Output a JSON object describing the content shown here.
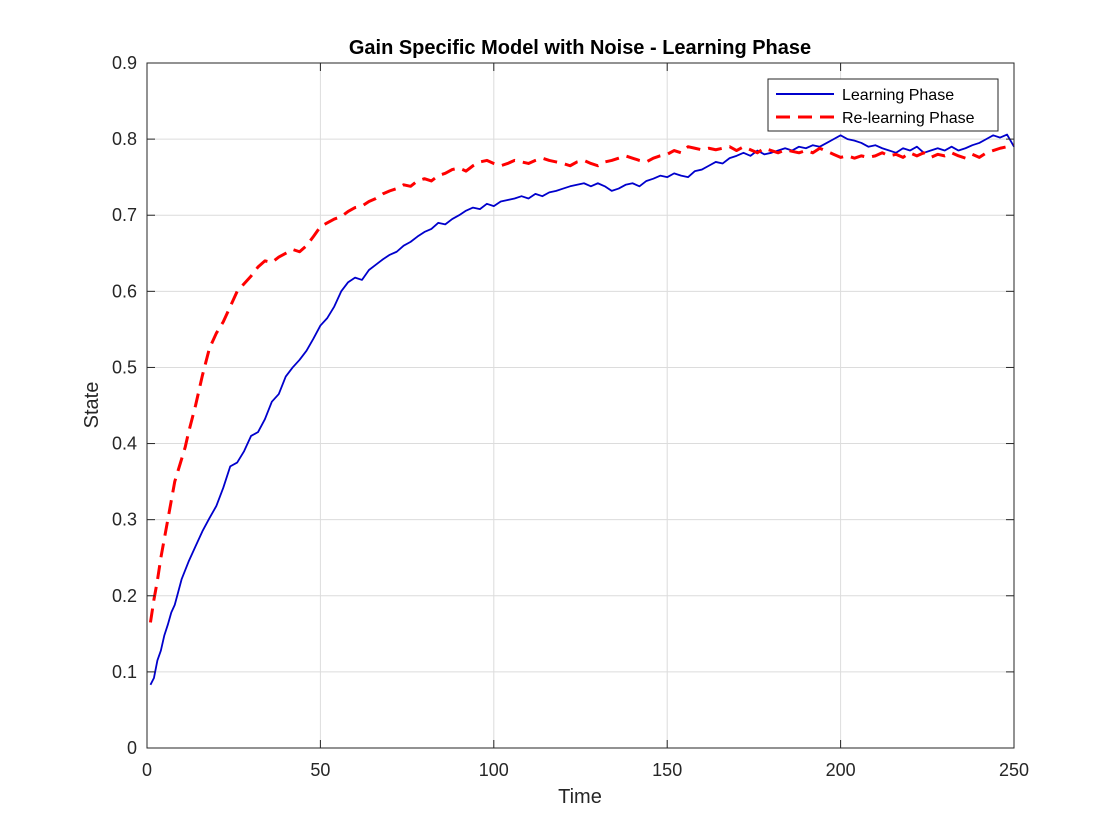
{
  "chart_data": {
    "type": "line",
    "title": "Gain Specific Model with Noise - Learning Phase",
    "xlabel": "Time",
    "ylabel": "State",
    "xlim": [
      0,
      250
    ],
    "ylim": [
      0,
      0.9
    ],
    "xticks": [
      "0",
      "50",
      "100",
      "150",
      "200",
      "250"
    ],
    "yticks": [
      "0",
      "0.1",
      "0.2",
      "0.3",
      "0.4",
      "0.5",
      "0.6",
      "0.7",
      "0.8",
      "0.9"
    ],
    "grid": true,
    "legend": "top-right",
    "series": [
      {
        "name": "Learning Phase",
        "color": "#0000cc",
        "style": "solid",
        "x": [
          1,
          2,
          3,
          4,
          5,
          6,
          7,
          8,
          9,
          10,
          12,
          14,
          16,
          18,
          20,
          22,
          24,
          26,
          28,
          30,
          32,
          34,
          36,
          38,
          40,
          42,
          44,
          46,
          48,
          50,
          52,
          54,
          56,
          58,
          60,
          62,
          64,
          66,
          68,
          70,
          72,
          74,
          76,
          78,
          80,
          82,
          84,
          86,
          88,
          90,
          92,
          94,
          96,
          98,
          100,
          102,
          104,
          106,
          108,
          110,
          112,
          114,
          116,
          118,
          120,
          122,
          124,
          126,
          128,
          130,
          132,
          134,
          136,
          138,
          140,
          142,
          144,
          146,
          148,
          150,
          152,
          154,
          156,
          158,
          160,
          162,
          164,
          166,
          168,
          170,
          172,
          174,
          176,
          178,
          180,
          182,
          184,
          186,
          188,
          190,
          192,
          194,
          196,
          198,
          200,
          202,
          204,
          206,
          208,
          210,
          212,
          214,
          216,
          218,
          220,
          222,
          224,
          226,
          228,
          230,
          232,
          234,
          236,
          238,
          240,
          242,
          244,
          246,
          248,
          250
        ],
        "values": [
          0.083,
          0.092,
          0.115,
          0.128,
          0.148,
          0.162,
          0.178,
          0.188,
          0.205,
          0.222,
          0.245,
          0.265,
          0.285,
          0.302,
          0.318,
          0.342,
          0.37,
          0.375,
          0.39,
          0.41,
          0.415,
          0.432,
          0.455,
          0.465,
          0.488,
          0.5,
          0.51,
          0.522,
          0.538,
          0.555,
          0.565,
          0.58,
          0.6,
          0.612,
          0.618,
          0.615,
          0.628,
          0.635,
          0.642,
          0.648,
          0.652,
          0.66,
          0.665,
          0.672,
          0.678,
          0.682,
          0.69,
          0.688,
          0.695,
          0.7,
          0.706,
          0.71,
          0.708,
          0.715,
          0.712,
          0.718,
          0.72,
          0.722,
          0.725,
          0.722,
          0.728,
          0.725,
          0.73,
          0.732,
          0.735,
          0.738,
          0.74,
          0.742,
          0.738,
          0.742,
          0.738,
          0.732,
          0.735,
          0.74,
          0.742,
          0.738,
          0.745,
          0.748,
          0.752,
          0.75,
          0.755,
          0.752,
          0.75,
          0.758,
          0.76,
          0.765,
          0.77,
          0.768,
          0.775,
          0.778,
          0.782,
          0.778,
          0.785,
          0.78,
          0.782,
          0.785,
          0.788,
          0.785,
          0.79,
          0.788,
          0.792,
          0.79,
          0.795,
          0.8,
          0.805,
          0.8,
          0.798,
          0.795,
          0.79,
          0.792,
          0.788,
          0.785,
          0.782,
          0.788,
          0.785,
          0.79,
          0.782,
          0.785,
          0.788,
          0.785,
          0.79,
          0.785,
          0.788,
          0.792,
          0.795,
          0.8,
          0.805,
          0.802,
          0.806,
          0.79
        ]
      },
      {
        "name": "Re-learning Phase",
        "color": "#ff0000",
        "style": "dashed",
        "x": [
          1,
          2,
          3,
          4,
          5,
          6,
          7,
          8,
          9,
          10,
          11,
          12,
          14,
          16,
          18,
          20,
          22,
          24,
          26,
          28,
          30,
          32,
          34,
          36,
          38,
          40,
          42,
          44,
          46,
          48,
          50,
          52,
          54,
          56,
          58,
          60,
          62,
          64,
          66,
          68,
          70,
          72,
          74,
          76,
          78,
          80,
          82,
          84,
          86,
          88,
          90,
          92,
          94,
          96,
          98,
          100,
          102,
          104,
          106,
          108,
          110,
          112,
          114,
          116,
          118,
          120,
          122,
          124,
          126,
          128,
          130,
          132,
          134,
          136,
          138,
          140,
          142,
          144,
          146,
          148,
          150,
          152,
          154,
          156,
          158,
          160,
          162,
          164,
          166,
          168,
          170,
          172,
          174,
          176,
          178,
          180,
          182,
          184,
          186,
          188,
          190,
          192,
          194,
          196,
          198,
          200,
          202,
          204,
          206,
          208,
          210,
          212,
          214,
          216,
          218,
          220,
          222,
          224,
          226,
          228,
          230,
          232,
          234,
          236,
          238,
          240,
          242,
          244,
          246,
          248,
          250
        ],
        "values": [
          0.165,
          0.195,
          0.22,
          0.25,
          0.275,
          0.3,
          0.325,
          0.35,
          0.365,
          0.38,
          0.395,
          0.415,
          0.45,
          0.49,
          0.525,
          0.545,
          0.56,
          0.58,
          0.6,
          0.61,
          0.62,
          0.632,
          0.64,
          0.638,
          0.645,
          0.65,
          0.655,
          0.652,
          0.66,
          0.672,
          0.685,
          0.69,
          0.695,
          0.698,
          0.705,
          0.71,
          0.712,
          0.718,
          0.722,
          0.728,
          0.732,
          0.735,
          0.74,
          0.738,
          0.745,
          0.748,
          0.745,
          0.752,
          0.755,
          0.76,
          0.762,
          0.758,
          0.765,
          0.77,
          0.772,
          0.768,
          0.765,
          0.768,
          0.772,
          0.77,
          0.768,
          0.772,
          0.775,
          0.772,
          0.77,
          0.768,
          0.765,
          0.77,
          0.772,
          0.768,
          0.765,
          0.77,
          0.772,
          0.775,
          0.778,
          0.775,
          0.772,
          0.77,
          0.775,
          0.778,
          0.78,
          0.785,
          0.782,
          0.79,
          0.788,
          0.786,
          0.788,
          0.786,
          0.788,
          0.79,
          0.785,
          0.79,
          0.786,
          0.782,
          0.788,
          0.785,
          0.782,
          0.786,
          0.784,
          0.782,
          0.785,
          0.782,
          0.788,
          0.784,
          0.78,
          0.776,
          0.778,
          0.775,
          0.778,
          0.776,
          0.778,
          0.782,
          0.778,
          0.78,
          0.776,
          0.782,
          0.778,
          0.782,
          0.776,
          0.78,
          0.778,
          0.782,
          0.778,
          0.775,
          0.78,
          0.776,
          0.782,
          0.785,
          0.788,
          0.79,
          0.792
        ]
      }
    ]
  }
}
